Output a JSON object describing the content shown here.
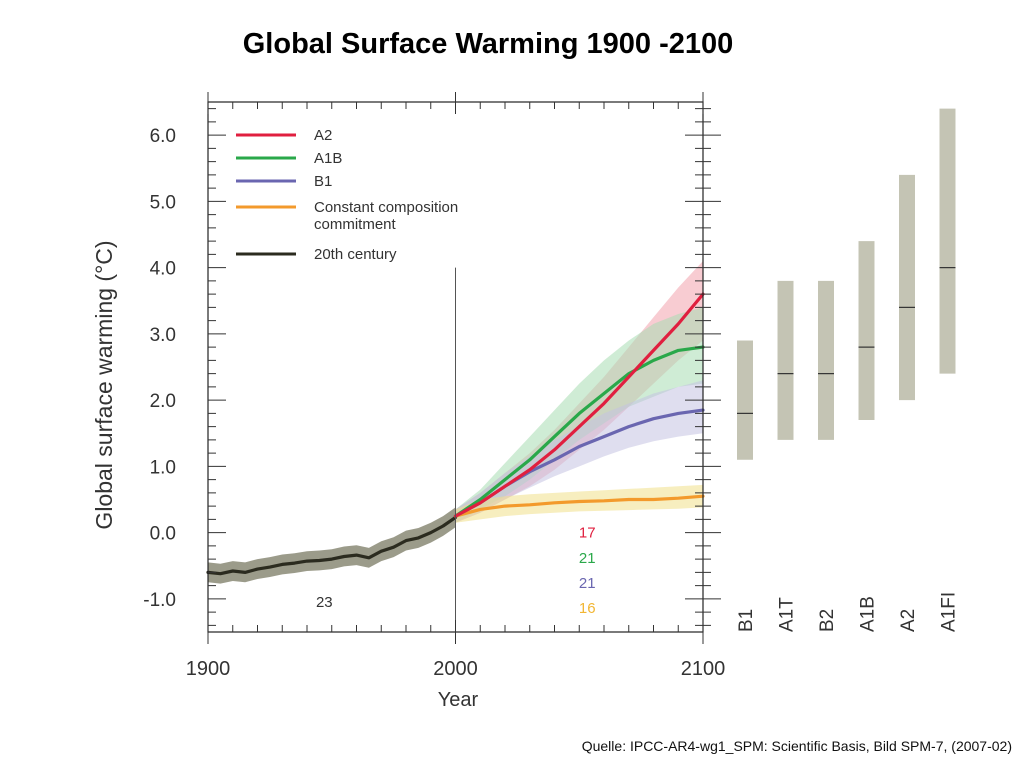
{
  "slide": {
    "title": "Global Surface Warming 1900 -2100",
    "source": "Quelle: IPCC-AR4-wg1_SPM: Scientific Basis, Bild SPM-7,  (2007-02)"
  },
  "chart_data": {
    "type": "line",
    "xlabel": "Year",
    "ylabel": "Global surface warming (°C)",
    "xlim": [
      1900,
      2100
    ],
    "ylim": [
      -1.5,
      6.5
    ],
    "xticks": [
      1900,
      2000,
      2100
    ],
    "yticks": [
      -1.0,
      0.0,
      1.0,
      2.0,
      3.0,
      4.0,
      5.0,
      6.0
    ],
    "ytick_labels": [
      "-1.0",
      "0.0",
      "1.0",
      "2.0",
      "3.0",
      "4.0",
      "5.0",
      "6.0"
    ],
    "grid": false,
    "legend_position": "top-left",
    "divider_year": 2000,
    "series": [
      {
        "name": "20th century",
        "color": "#2b2b1f",
        "band_color": "#8a8a75",
        "x": [
          1900,
          1905,
          1910,
          1915,
          1920,
          1925,
          1930,
          1935,
          1940,
          1945,
          1950,
          1955,
          1960,
          1965,
          1970,
          1975,
          1980,
          1985,
          1990,
          1995,
          2000
        ],
        "y": [
          -0.6,
          -0.62,
          -0.58,
          -0.6,
          -0.55,
          -0.52,
          -0.48,
          -0.46,
          -0.43,
          -0.42,
          -0.4,
          -0.36,
          -0.34,
          -0.38,
          -0.28,
          -0.22,
          -0.12,
          -0.08,
          0.0,
          0.1,
          0.23
        ],
        "band_half_width": 0.15
      },
      {
        "name": "A2",
        "color": "#e01f3f",
        "band_color": "#f2a3ad",
        "x": [
          2000,
          2010,
          2020,
          2030,
          2040,
          2050,
          2060,
          2070,
          2080,
          2090,
          2100
        ],
        "y": [
          0.25,
          0.45,
          0.7,
          0.95,
          1.25,
          1.6,
          1.95,
          2.35,
          2.75,
          3.15,
          3.6
        ],
        "lower": [
          0.15,
          0.3,
          0.5,
          0.7,
          0.95,
          1.25,
          1.55,
          1.9,
          2.25,
          2.6,
          2.9
        ],
        "upper": [
          0.35,
          0.6,
          0.9,
          1.2,
          1.55,
          1.95,
          2.35,
          2.8,
          3.25,
          3.7,
          4.1
        ]
      },
      {
        "name": "A1B",
        "color": "#2aa84a",
        "band_color": "#a8dcb2",
        "x": [
          2000,
          2010,
          2020,
          2030,
          2040,
          2050,
          2060,
          2070,
          2080,
          2090,
          2100
        ],
        "y": [
          0.25,
          0.5,
          0.8,
          1.1,
          1.45,
          1.8,
          2.1,
          2.4,
          2.6,
          2.75,
          2.8
        ],
        "lower": [
          0.15,
          0.35,
          0.55,
          0.8,
          1.1,
          1.4,
          1.65,
          1.9,
          2.05,
          2.2,
          2.25
        ],
        "upper": [
          0.35,
          0.65,
          1.05,
          1.45,
          1.85,
          2.25,
          2.6,
          2.9,
          3.15,
          3.3,
          3.4
        ]
      },
      {
        "name": "B1",
        "color": "#6a66b0",
        "band_color": "#c5c2e2",
        "x": [
          2000,
          2010,
          2020,
          2030,
          2040,
          2050,
          2060,
          2070,
          2080,
          2090,
          2100
        ],
        "y": [
          0.25,
          0.45,
          0.7,
          0.92,
          1.1,
          1.3,
          1.45,
          1.6,
          1.72,
          1.8,
          1.85
        ],
        "lower": [
          0.15,
          0.3,
          0.5,
          0.68,
          0.85,
          1.0,
          1.15,
          1.28,
          1.38,
          1.45,
          1.5
        ],
        "upper": [
          0.35,
          0.6,
          0.9,
          1.15,
          1.4,
          1.6,
          1.8,
          1.95,
          2.1,
          2.2,
          2.3
        ]
      },
      {
        "name": "Constant composition commitment",
        "color": "#f39a2c",
        "band_color": "#f0e08a",
        "x": [
          2000,
          2010,
          2020,
          2030,
          2040,
          2050,
          2060,
          2070,
          2080,
          2090,
          2100
        ],
        "y": [
          0.25,
          0.35,
          0.4,
          0.42,
          0.45,
          0.47,
          0.48,
          0.5,
          0.5,
          0.52,
          0.55
        ],
        "lower": [
          0.15,
          0.2,
          0.25,
          0.28,
          0.3,
          0.32,
          0.33,
          0.34,
          0.35,
          0.36,
          0.38
        ],
        "upper": [
          0.35,
          0.5,
          0.55,
          0.58,
          0.6,
          0.62,
          0.64,
          0.66,
          0.68,
          0.7,
          0.72
        ]
      }
    ],
    "legend": [
      {
        "label": "A2",
        "color": "#e01f3f"
      },
      {
        "label": "A1B",
        "color": "#2aa84a"
      },
      {
        "label": "B1",
        "color": "#6a66b0"
      },
      {
        "label_line1": "Constant composition",
        "label_line2": "commitment",
        "color": "#f39a2c"
      },
      {
        "label": "20th century",
        "color": "#2b2b1f"
      }
    ],
    "model_counts": [
      {
        "text": "23",
        "color": "#333333",
        "year": 1947,
        "yval": -1.05
      },
      {
        "text": "17",
        "color": "#e01f3f",
        "year": 2050,
        "yval": 0.0
      },
      {
        "text": "21",
        "color": "#2aa84a",
        "year": 2050,
        "yval": -0.38
      },
      {
        "text": "21",
        "color": "#6a66b0",
        "year": 2050,
        "yval": -0.76
      },
      {
        "text": "16",
        "color": "#f2b633",
        "year": 2050,
        "yval": -1.14
      }
    ],
    "scenario_ranges": [
      {
        "name": "B1",
        "low": 1.1,
        "best": 1.8,
        "high": 2.9
      },
      {
        "name": "A1T",
        "low": 1.4,
        "best": 2.4,
        "high": 3.8
      },
      {
        "name": "B2",
        "low": 1.4,
        "best": 2.4,
        "high": 3.8
      },
      {
        "name": "A1B",
        "low": 1.7,
        "best": 2.8,
        "high": 4.4
      },
      {
        "name": "A2",
        "low": 2.0,
        "best": 3.4,
        "high": 5.4
      },
      {
        "name": "A1FI",
        "low": 2.4,
        "best": 4.0,
        "high": 6.4
      }
    ],
    "range_bar_color": "#c4c4b4"
  }
}
